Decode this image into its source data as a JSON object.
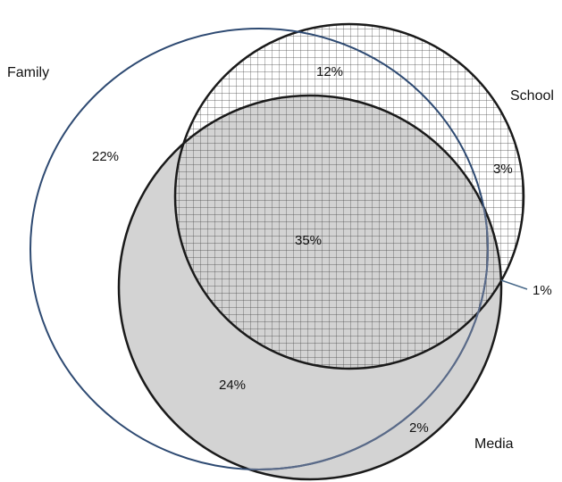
{
  "colors": {
    "family_outline": "#2e4a72",
    "school_outline": "#1a1a1a",
    "media_outline": "#1a1a1a",
    "media_fill": "#d3d3d3",
    "hatch": "#444444",
    "leader_line": "#4a6a8a"
  },
  "sets": {
    "family": "Family",
    "school": "School",
    "media": "Media"
  },
  "regions": {
    "family_only": "22%",
    "school_only": "12%",
    "media_only": "",
    "family_school": "3%",
    "family_school_media": "35%",
    "family_media": "24%",
    "school_media": "1%",
    "media_outside_family": "2%"
  }
}
